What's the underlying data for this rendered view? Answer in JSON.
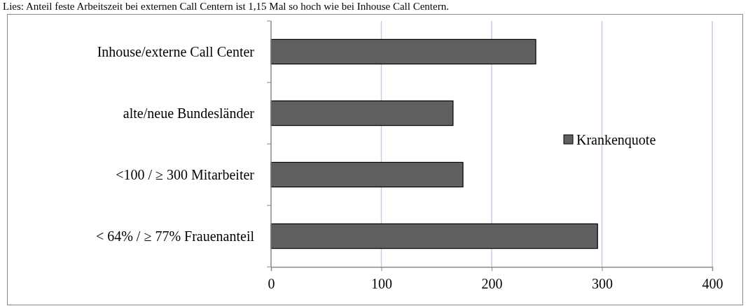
{
  "chart_data": {
    "type": "bar",
    "orientation": "horizontal",
    "categories": [
      "Inhouse/externe Call Center",
      "alte/neue Bundesländer",
      "<100 / ≥ 300 Mitarbeiter",
      "< 64% / ≥ 77% Frauenanteil"
    ],
    "series": [
      {
        "name": "Krankenquote",
        "color": "#606060",
        "values": [
          240,
          165,
          174,
          296
        ]
      }
    ],
    "xlim": [
      0,
      400
    ],
    "xticks": [
      0,
      100,
      200,
      300,
      400
    ],
    "grid": "x",
    "legend": "right",
    "annotations": [
      "Lies: Anteil feste Arbeitszeit bei externen Call Centern ist 1,15 Mal so hoch wie bei Inhouse Call Centern."
    ]
  }
}
